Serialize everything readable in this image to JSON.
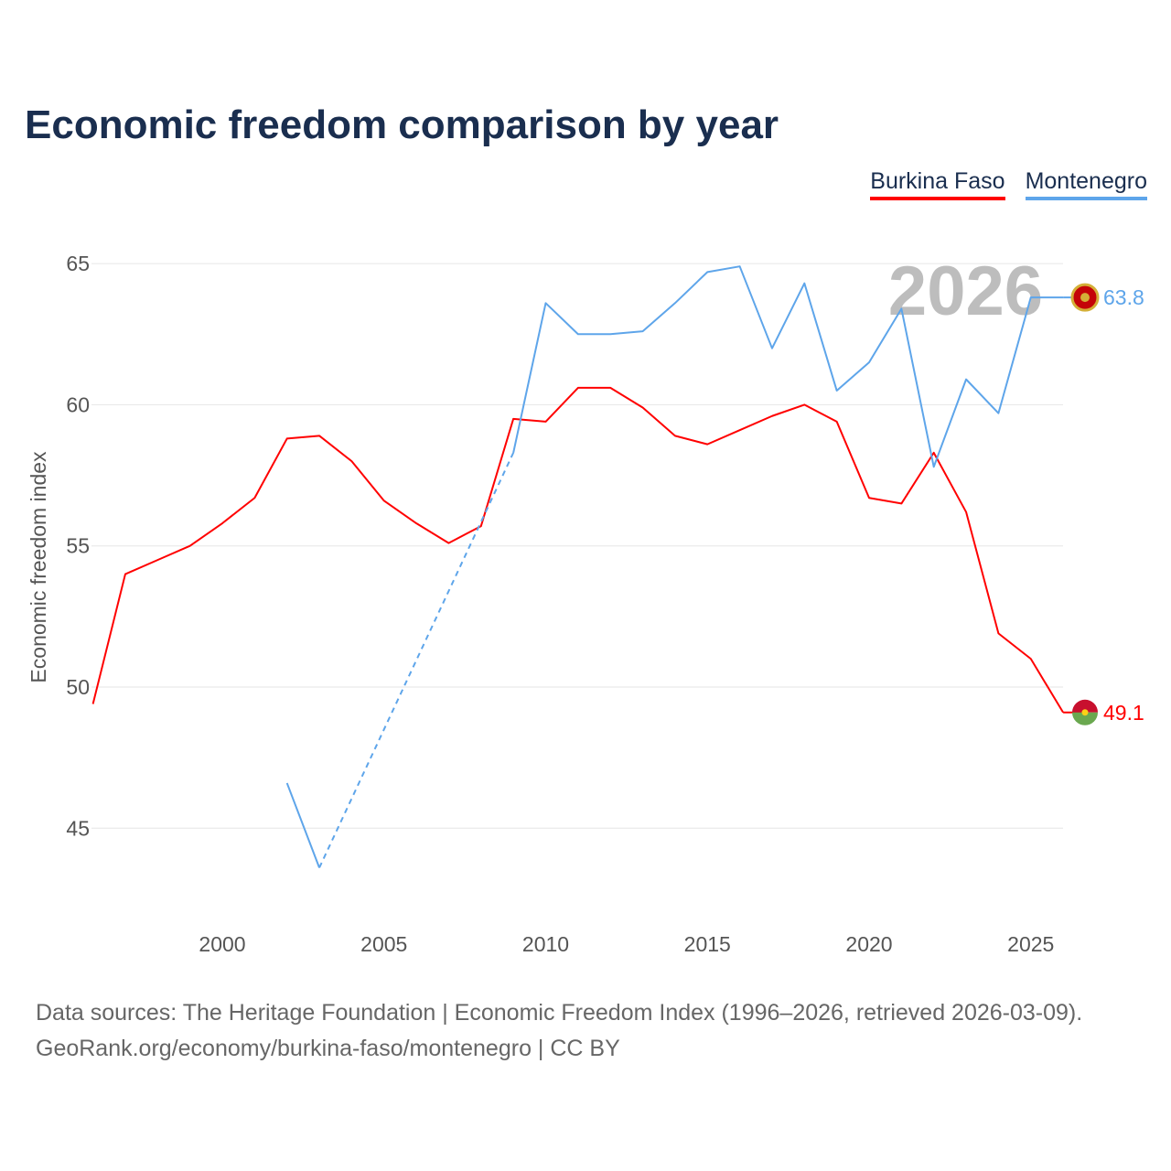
{
  "chart_data": {
    "type": "line",
    "title": "Economic freedom comparison by year",
    "xlabel": "",
    "ylabel": "Economic freedom index",
    "xlim": [
      1996,
      2026
    ],
    "ylim": [
      41.5,
      67
    ],
    "xticks": [
      2000,
      2005,
      2010,
      2015,
      2020,
      2025
    ],
    "yticks": [
      45,
      50,
      55,
      60,
      65
    ],
    "grid": true,
    "legend_position": "top-right",
    "watermark_year": "2026",
    "series": [
      {
        "name": "Burkina Faso",
        "color": "#ff0000",
        "end_label": "49.1",
        "x": [
          1996,
          1997,
          1998,
          1999,
          2000,
          2001,
          2002,
          2003,
          2004,
          2005,
          2006,
          2007,
          2008,
          2009,
          2010,
          2011,
          2012,
          2013,
          2014,
          2015,
          2016,
          2017,
          2018,
          2019,
          2020,
          2021,
          2022,
          2023,
          2024,
          2025,
          2026
        ],
        "y": [
          49.4,
          54.0,
          54.5,
          55.0,
          55.8,
          56.7,
          58.8,
          58.9,
          58.0,
          56.6,
          55.8,
          55.1,
          55.7,
          59.5,
          59.4,
          60.6,
          60.6,
          59.9,
          58.9,
          58.6,
          59.1,
          59.6,
          60.0,
          59.4,
          56.7,
          56.5,
          58.3,
          56.2,
          51.9,
          51.0,
          49.1
        ]
      },
      {
        "name": "Montenegro",
        "color": "#5ea5ea",
        "end_label": "63.8",
        "x": [
          2002,
          2003,
          2004,
          2005,
          2006,
          2007,
          2008,
          2009,
          2010,
          2011,
          2012,
          2013,
          2014,
          2015,
          2016,
          2017,
          2018,
          2019,
          2020,
          2021,
          2022,
          2023,
          2024,
          2025,
          2026
        ],
        "y": [
          46.6,
          43.6,
          null,
          null,
          null,
          null,
          null,
          58.3,
          63.6,
          62.5,
          62.5,
          62.6,
          63.6,
          64.7,
          64.9,
          62.0,
          64.3,
          60.5,
          61.5,
          63.4,
          57.8,
          60.9,
          59.7,
          63.8,
          63.8
        ]
      }
    ]
  },
  "footer": {
    "line1": "Data sources: The Heritage Foundation | Economic Freedom Index (1996–2026, retrieved 2026-03-09).",
    "line2": "GeoRank.org/economy/burkina-faso/montenegro | CC BY"
  }
}
